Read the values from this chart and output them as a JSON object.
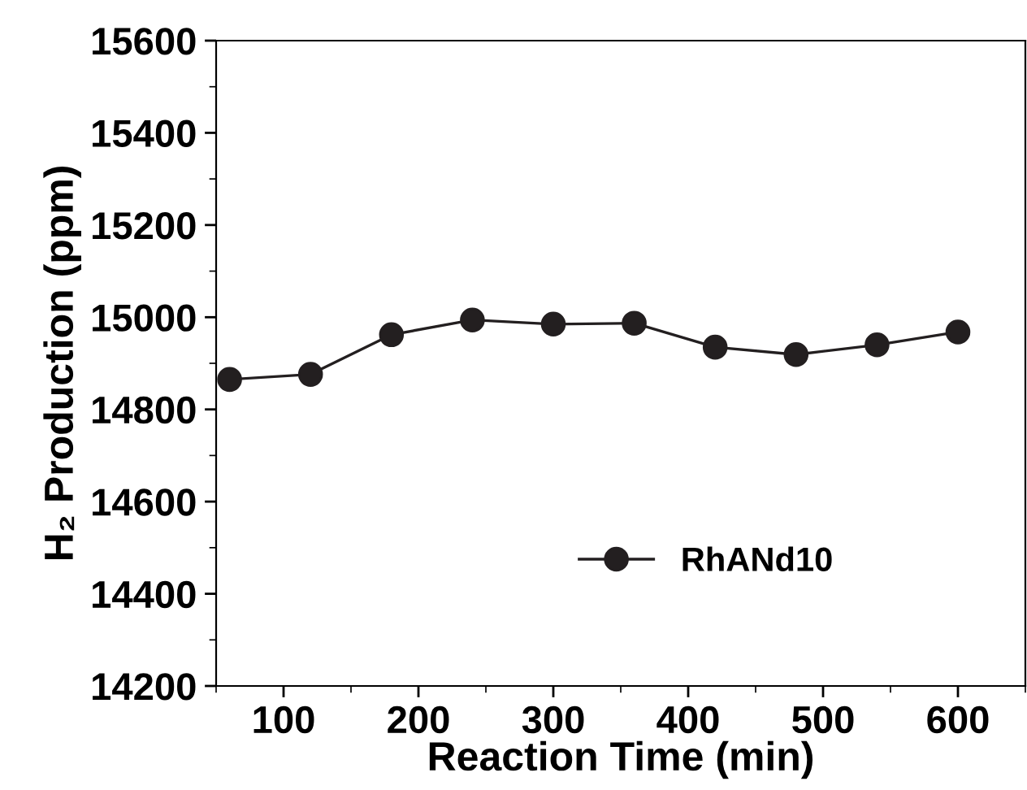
{
  "chart_data": {
    "type": "line",
    "xlabel": "Reaction Time (min)",
    "ylabel": "H₂ Production (ppm)",
    "x": [
      60,
      120,
      180,
      240,
      300,
      360,
      420,
      480,
      540,
      600
    ],
    "series": [
      {
        "name": "RhANd10",
        "color": "#231f20",
        "values": [
          14865,
          14876,
          14962,
          14994,
          14985,
          14987,
          14935,
          14919,
          14940,
          14968
        ]
      }
    ],
    "xlim": [
      50,
      650
    ],
    "xticks": [
      100,
      200,
      300,
      400,
      500,
      600
    ],
    "ylim": [
      14200,
      15600
    ],
    "yticks": [
      14200,
      14400,
      14600,
      14800,
      15000,
      15200,
      15400,
      15600
    ],
    "marker": "circle",
    "line_style": "solid",
    "legend": "lower right",
    "grid": false
  }
}
